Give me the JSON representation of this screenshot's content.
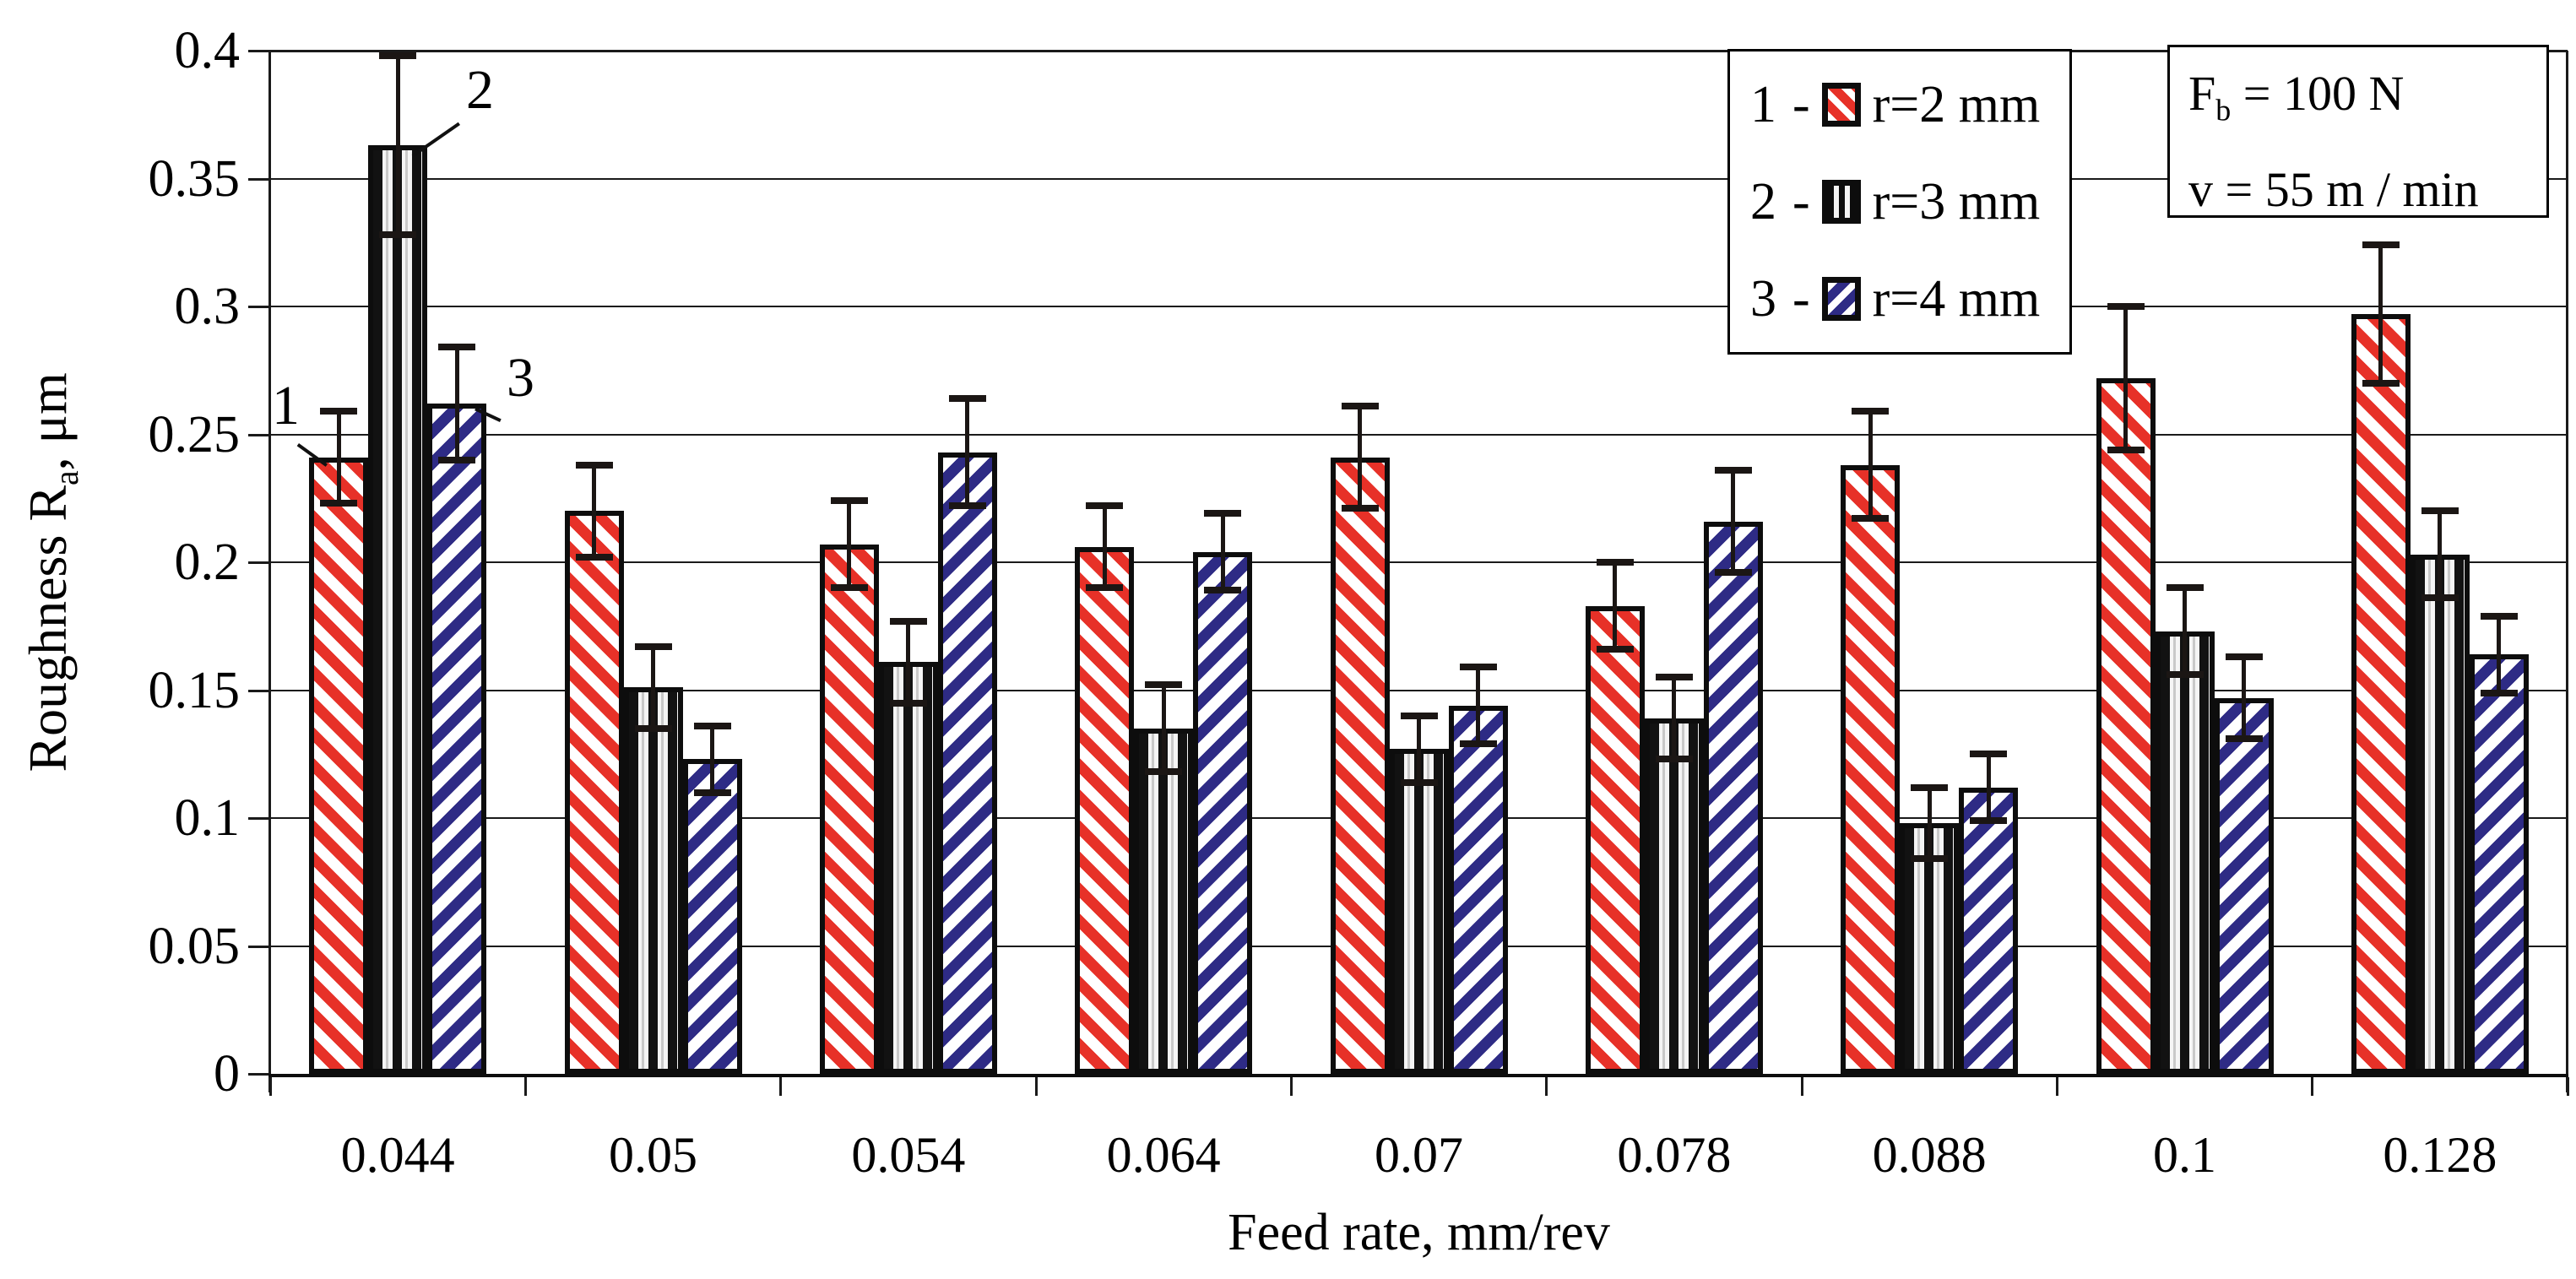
{
  "chart_data": {
    "type": "bar",
    "title": "",
    "xlabel": "Feed rate, mm/rev",
    "ylabel": {
      "prefix": "Roughness R",
      "sub": "a",
      "suffix": ", μm"
    },
    "categories": [
      "0.044",
      "0.05",
      "0.054",
      "0.064",
      "0.07",
      "0.078",
      "0.088",
      "0.1",
      "0.128"
    ],
    "series": [
      {
        "num": "1",
        "name": "r=2 mm",
        "pattern": "red-diagonal-down",
        "color": "#e73128",
        "values": [
          0.241,
          0.22,
          0.207,
          0.206,
          0.241,
          0.183,
          0.238,
          0.272,
          0.297
        ],
        "errors": [
          0.018,
          0.018,
          0.017,
          0.016,
          0.02,
          0.017,
          0.021,
          0.028,
          0.027
        ]
      },
      {
        "num": "2",
        "name": "r=3 mm",
        "pattern": "black-vertical",
        "color": "#121212",
        "values": [
          0.363,
          0.151,
          0.161,
          0.135,
          0.127,
          0.139,
          0.098,
          0.173,
          0.203
        ],
        "errors": [
          0.035,
          0.016,
          0.016,
          0.017,
          0.013,
          0.016,
          0.014,
          0.017,
          0.017
        ]
      },
      {
        "num": "3",
        "name": "r=4 mm",
        "pattern": "blue-diagonal-up",
        "color": "#2e2b85",
        "values": [
          0.262,
          0.123,
          0.243,
          0.204,
          0.144,
          0.216,
          0.112,
          0.147,
          0.164
        ],
        "errors": [
          0.022,
          0.013,
          0.021,
          0.015,
          0.015,
          0.02,
          0.013,
          0.016,
          0.015
        ]
      }
    ],
    "ylim": [
      0,
      0.4
    ],
    "yticks": [
      "0",
      "0.05",
      "0.1",
      "0.15",
      "0.2",
      "0.25",
      "0.3",
      "0.35",
      "0.4"
    ],
    "grid": true,
    "error_bars": true,
    "legend": {
      "position": "top-right",
      "separator": "-",
      "rows": [
        {
          "num": "1",
          "label": "r=2 mm"
        },
        {
          "num": "2",
          "label": "r=3 mm"
        },
        {
          "num": "3",
          "label": "r=4 mm"
        }
      ]
    },
    "annotation": {
      "line1": {
        "prefix": "F",
        "sub": "b",
        "suffix": " = 100 N"
      },
      "line2": "v = 55 m / min"
    },
    "callouts": [
      "1",
      "2",
      "3"
    ]
  }
}
